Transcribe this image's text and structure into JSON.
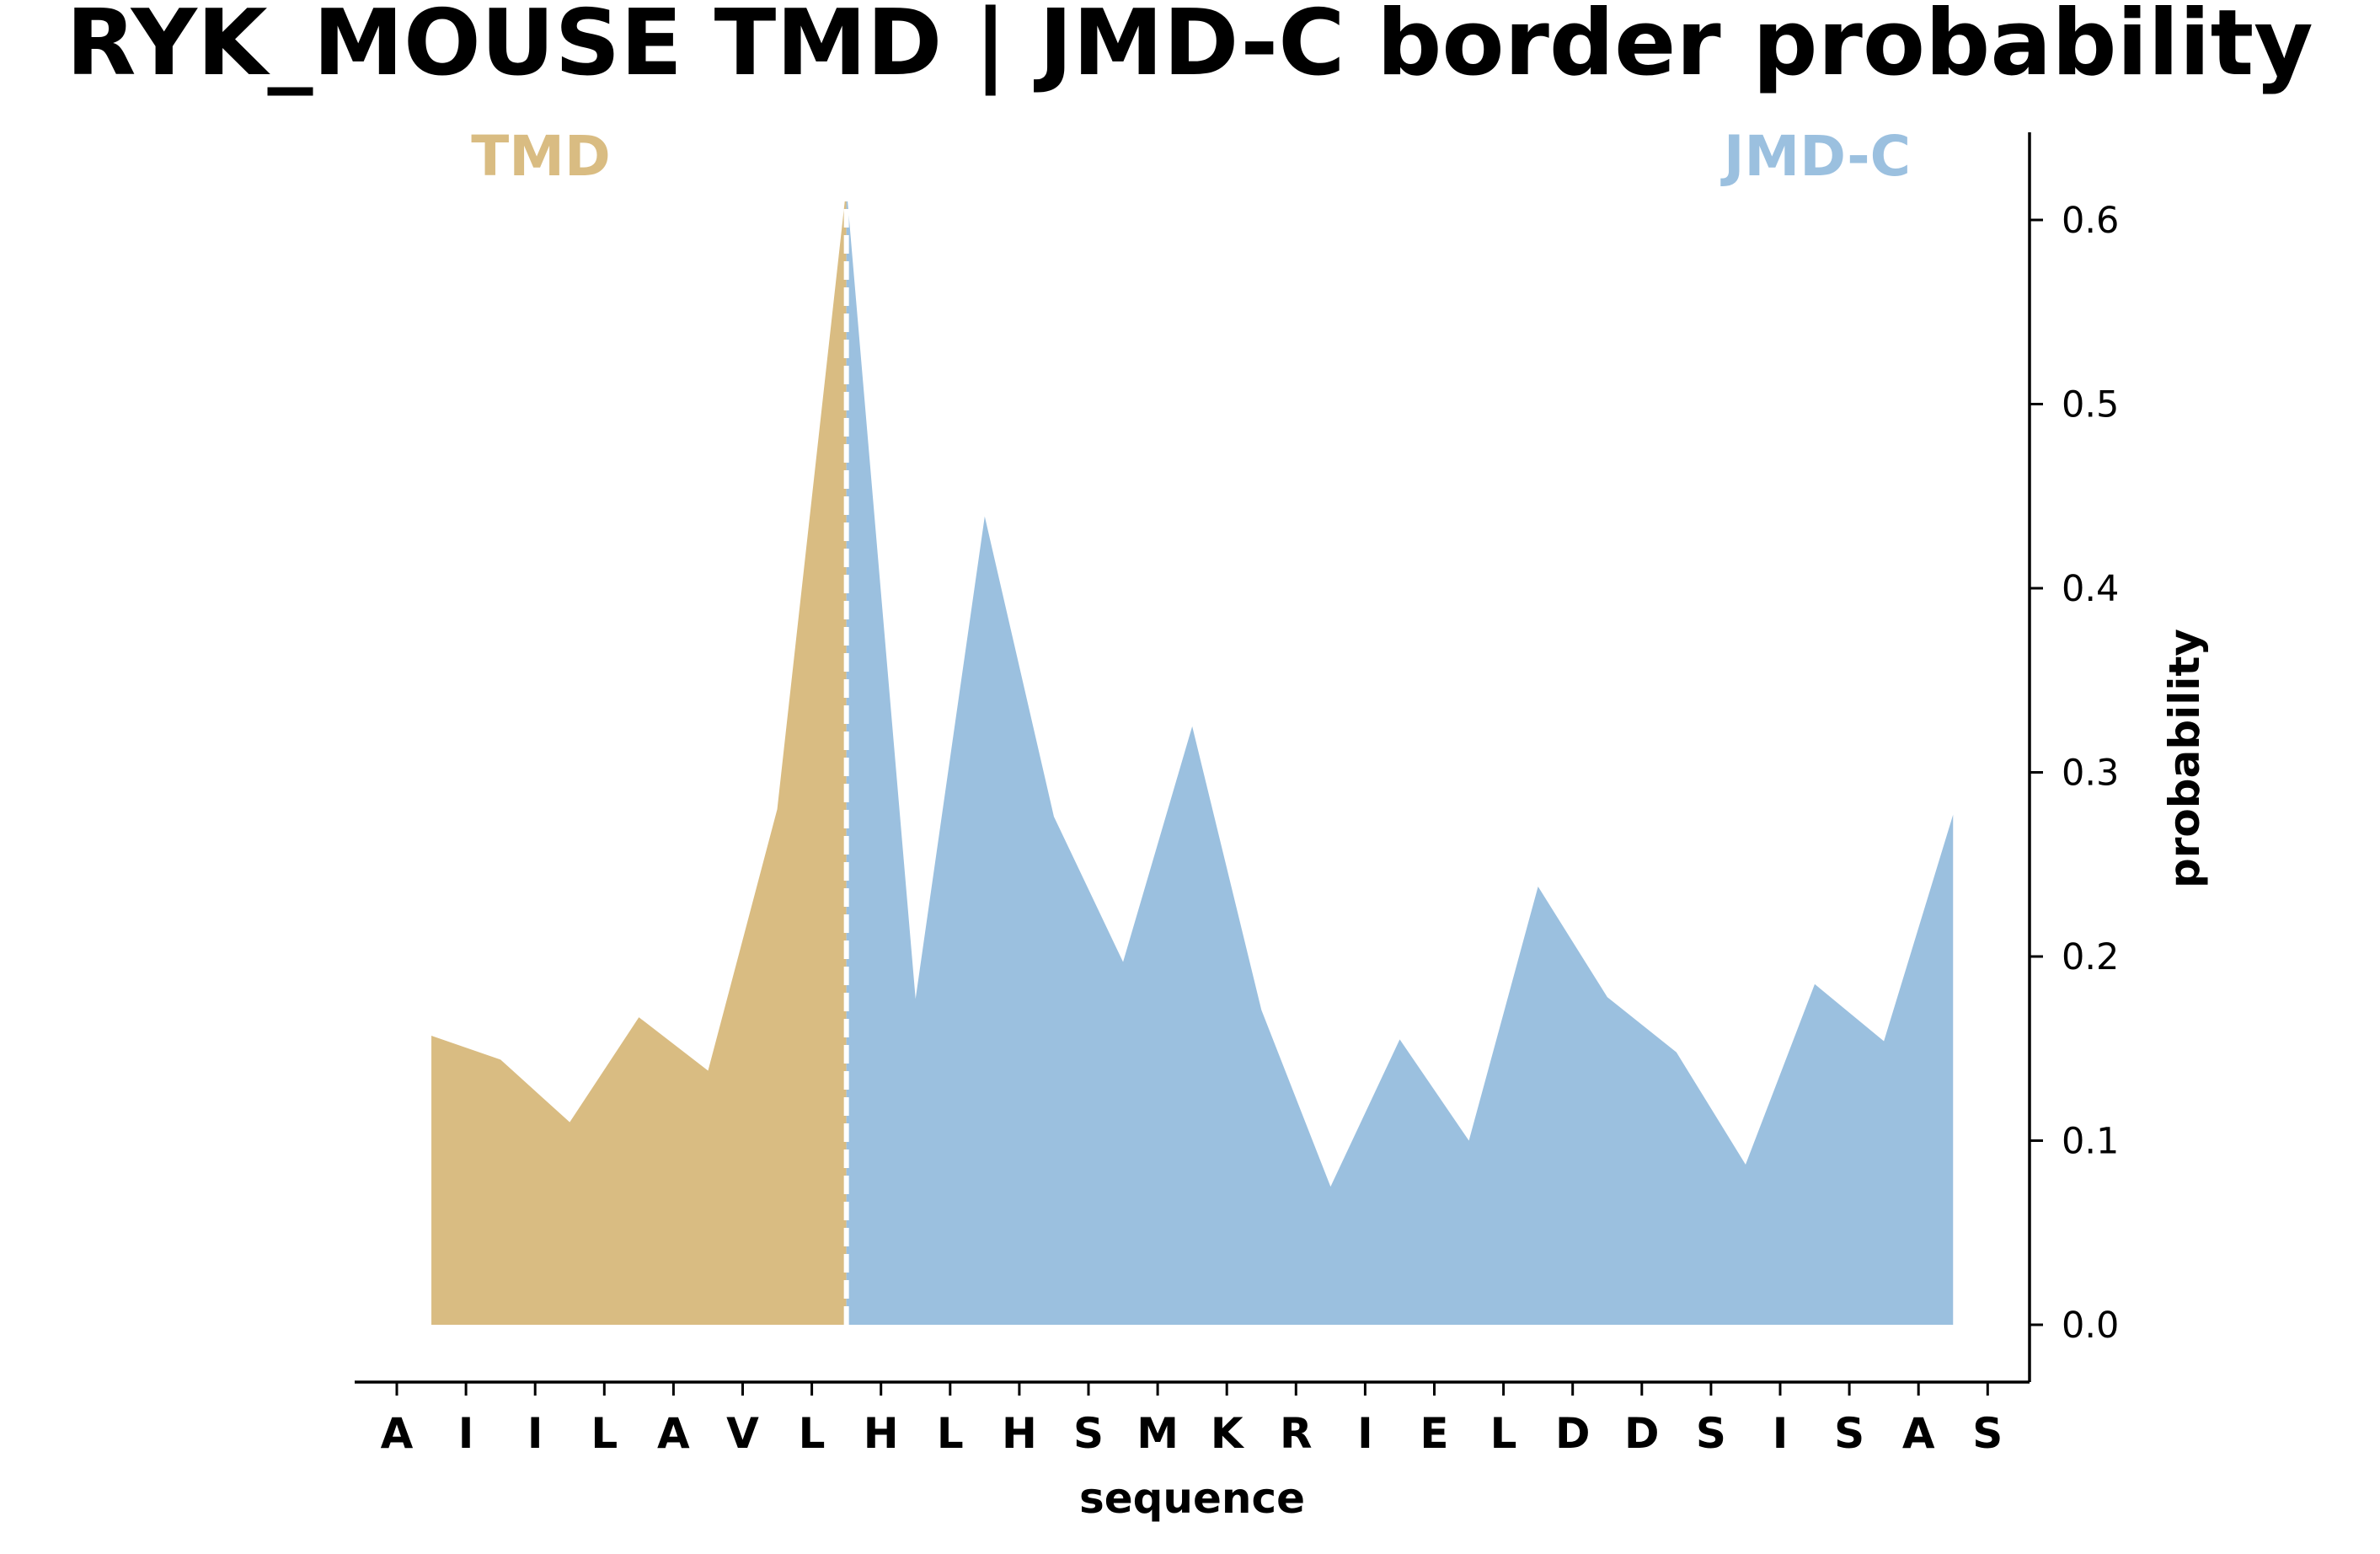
{
  "chart_data": {
    "type": "area",
    "title": "RYK_MOUSE TMD | JMD-C border probability",
    "xlabel": "sequence",
    "ylabel": "probability",
    "x_tick_labels": [
      "A",
      "I",
      "I",
      "L",
      "A",
      "V",
      "L",
      "H",
      "L",
      "H",
      "S",
      "M",
      "K",
      "R",
      "I",
      "E",
      "L",
      "D",
      "D",
      "S",
      "I",
      "S",
      "A",
      "S"
    ],
    "ylim": [
      -0.03,
      0.65
    ],
    "y_ticks": [
      0.0,
      0.1,
      0.2,
      0.3,
      0.4,
      0.5,
      0.6
    ],
    "y_tick_labels": [
      "0.0",
      "0.1",
      "0.2",
      "0.3",
      "0.4",
      "0.5",
      "0.6"
    ],
    "y_axis_side": "right",
    "grid": false,
    "regions": [
      {
        "name": "TMD",
        "color": "#d9bc82"
      },
      {
        "name": "JMD-C",
        "color": "#9bc0df"
      }
    ],
    "border_position": 6.5,
    "series": [
      {
        "region": "TMD",
        "x": [
          0.5,
          1.5,
          2.5,
          3.5,
          4.5,
          5.5,
          6.5
        ],
        "values": [
          0.157,
          0.144,
          0.11,
          0.167,
          0.138,
          0.28,
          0.618
        ]
      },
      {
        "region": "JMD-C",
        "x": [
          6.5,
          7.5,
          8.5,
          9.5,
          10.5,
          11.5,
          12.5,
          13.5,
          14.5,
          15.5,
          16.5,
          17.5,
          18.5,
          19.5,
          20.5,
          21.5,
          22.5
        ],
        "values": [
          0.618,
          0.177,
          0.439,
          0.276,
          0.197,
          0.325,
          0.171,
          0.075,
          0.155,
          0.1,
          0.238,
          0.178,
          0.148,
          0.087,
          0.185,
          0.154,
          0.277
        ]
      }
    ]
  }
}
